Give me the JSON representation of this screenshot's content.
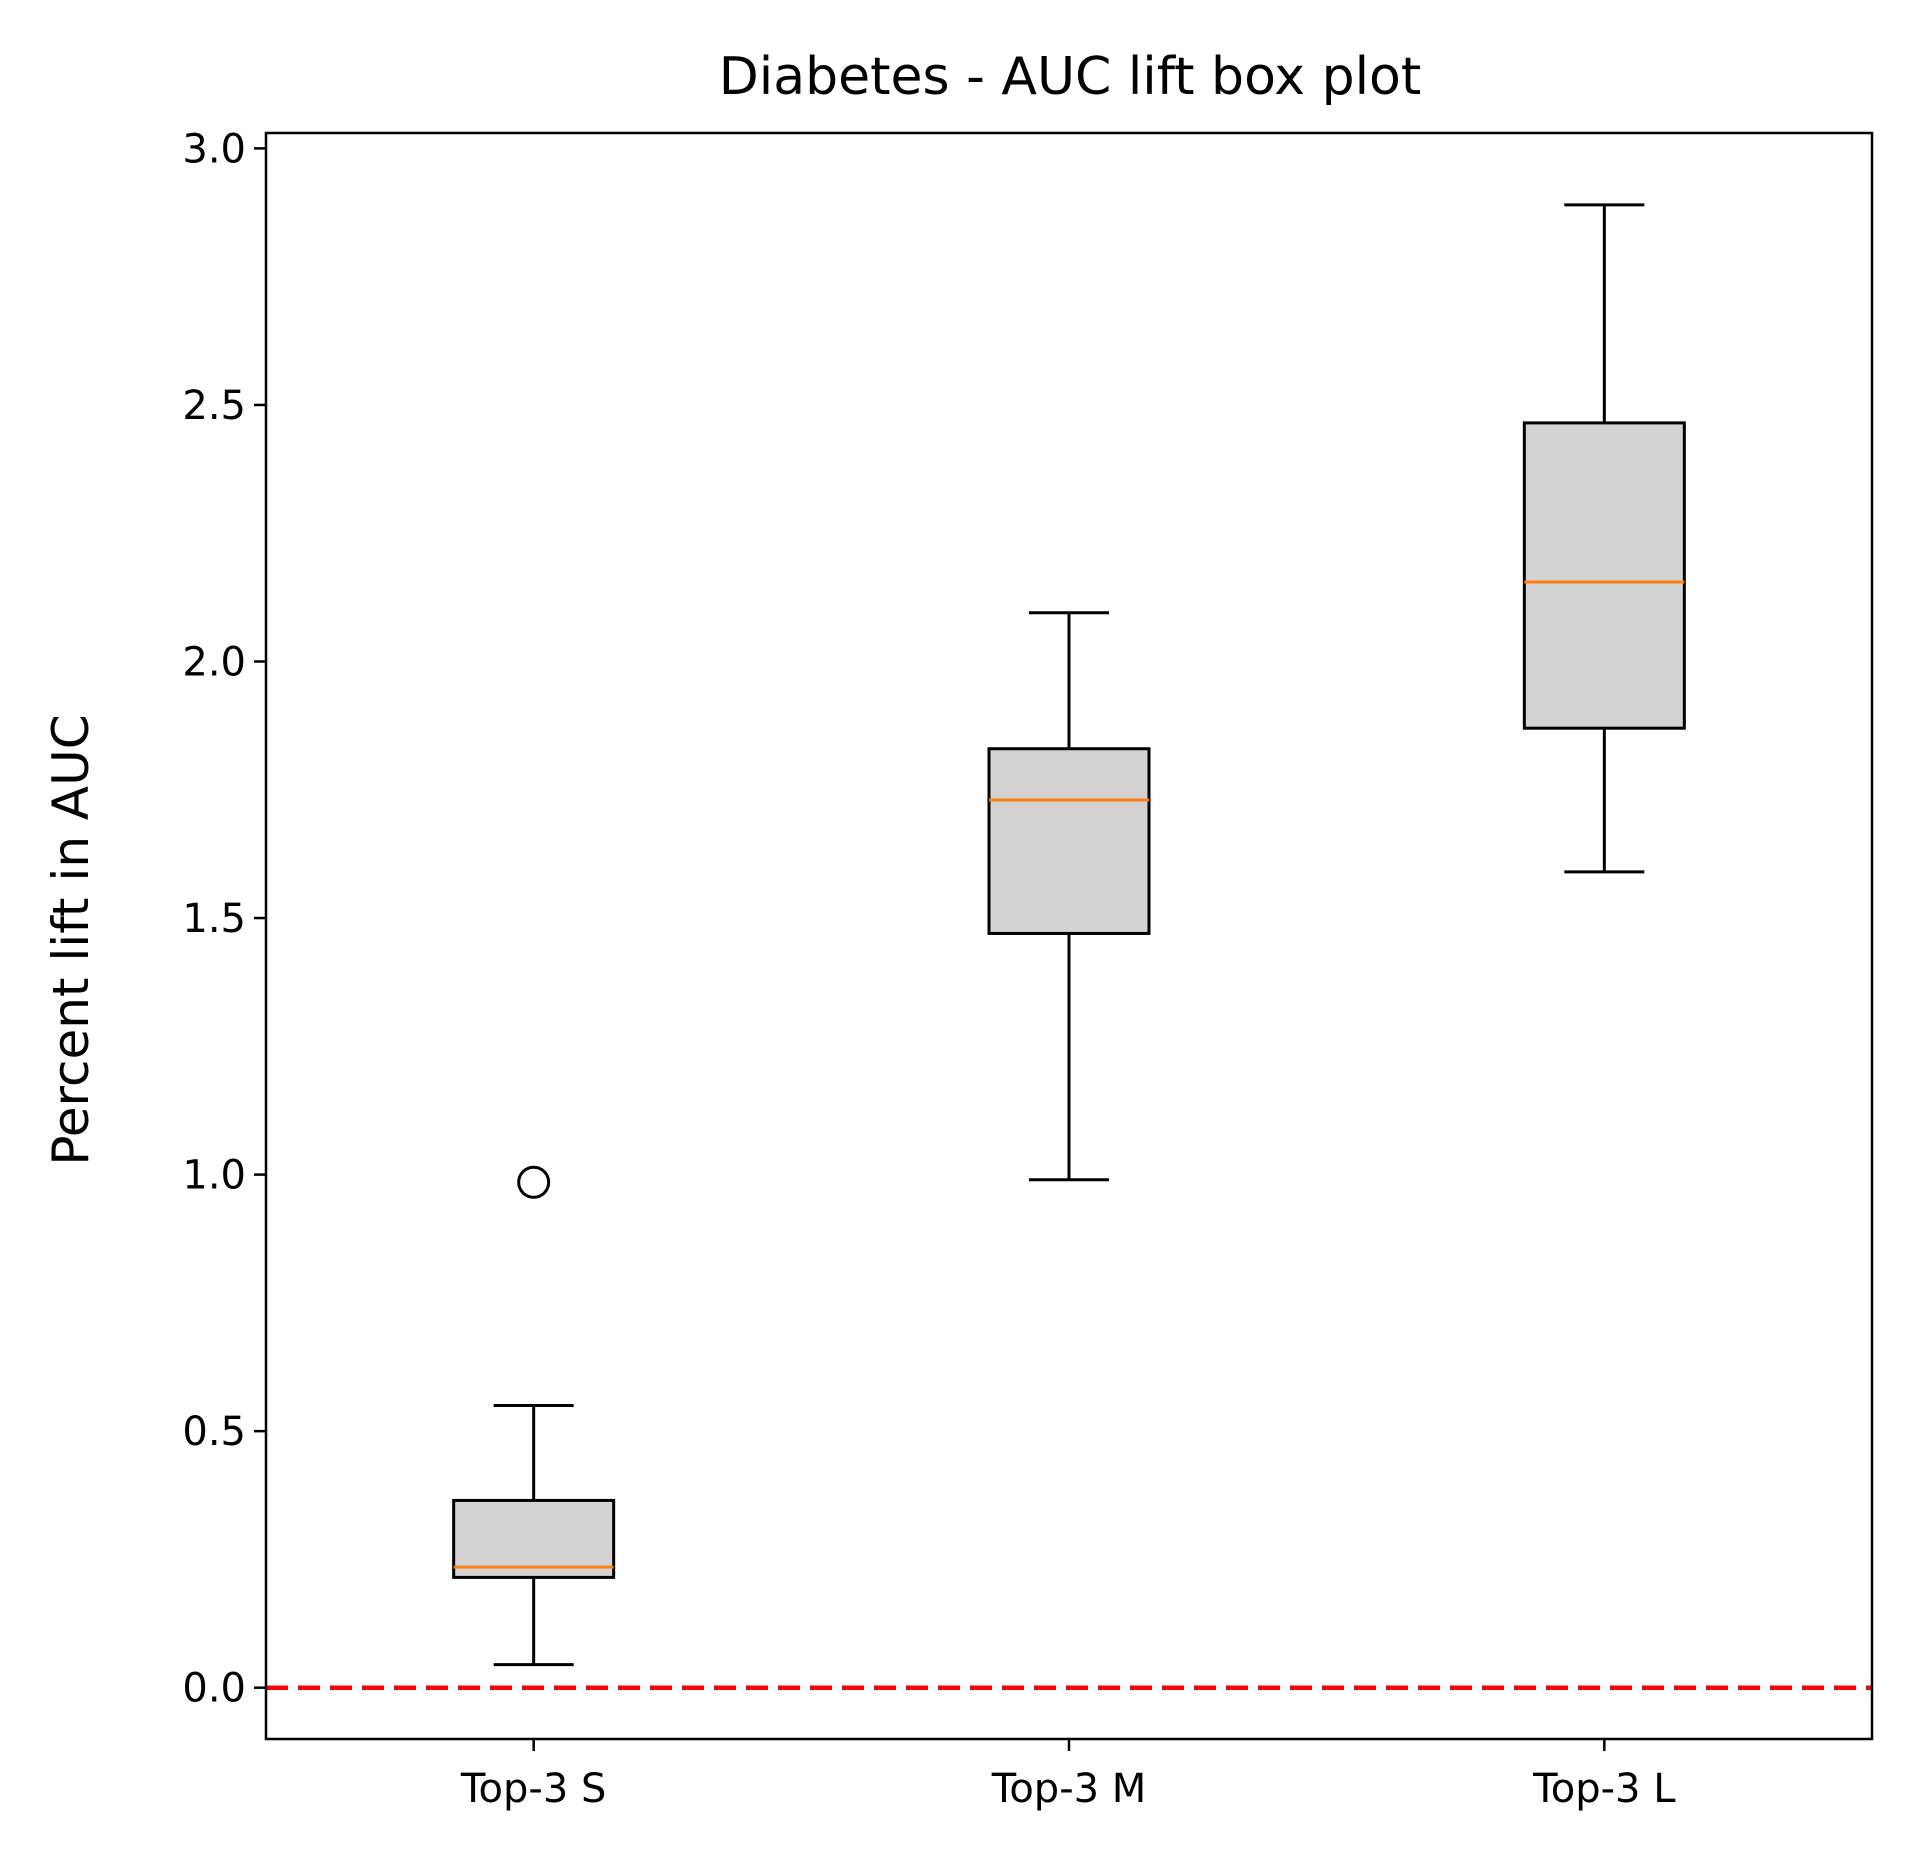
{
  "chart_data": {
    "type": "box",
    "title": "Diabetes - AUC lift box plot",
    "xlabel": "",
    "ylabel": "Percent lift in AUC",
    "ylim": [
      -0.1,
      3.03
    ],
    "yticks": [
      0.0,
      0.5,
      1.0,
      1.5,
      2.0,
      2.5,
      3.0
    ],
    "ytick_labels": [
      "0.0",
      "0.5",
      "1.0",
      "1.5",
      "2.0",
      "2.5",
      "3.0"
    ],
    "grid": false,
    "categories": [
      "Top-3 S",
      "Top-3 M",
      "Top-3 L"
    ],
    "boxes": [
      {
        "name": "Top-3 S",
        "whisker_low": 0.045,
        "q1": 0.215,
        "median": 0.235,
        "q3": 0.365,
        "whisker_high": 0.55,
        "outliers": [
          0.985
        ]
      },
      {
        "name": "Top-3 M",
        "whisker_low": 0.99,
        "q1": 1.47,
        "median": 1.73,
        "q3": 1.83,
        "whisker_high": 2.095,
        "outliers": []
      },
      {
        "name": "Top-3 L",
        "whisker_low": 1.59,
        "q1": 1.87,
        "median": 2.155,
        "q3": 2.465,
        "whisker_high": 2.89,
        "outliers": []
      }
    ],
    "reference_line": {
      "y": 0.0,
      "style": "dashed",
      "color": "#ff0000"
    },
    "colors": {
      "box_fill": "#d3d3d3",
      "box_edge": "#000000",
      "median": "#ff7f0e",
      "reference": "#ff0000"
    }
  }
}
